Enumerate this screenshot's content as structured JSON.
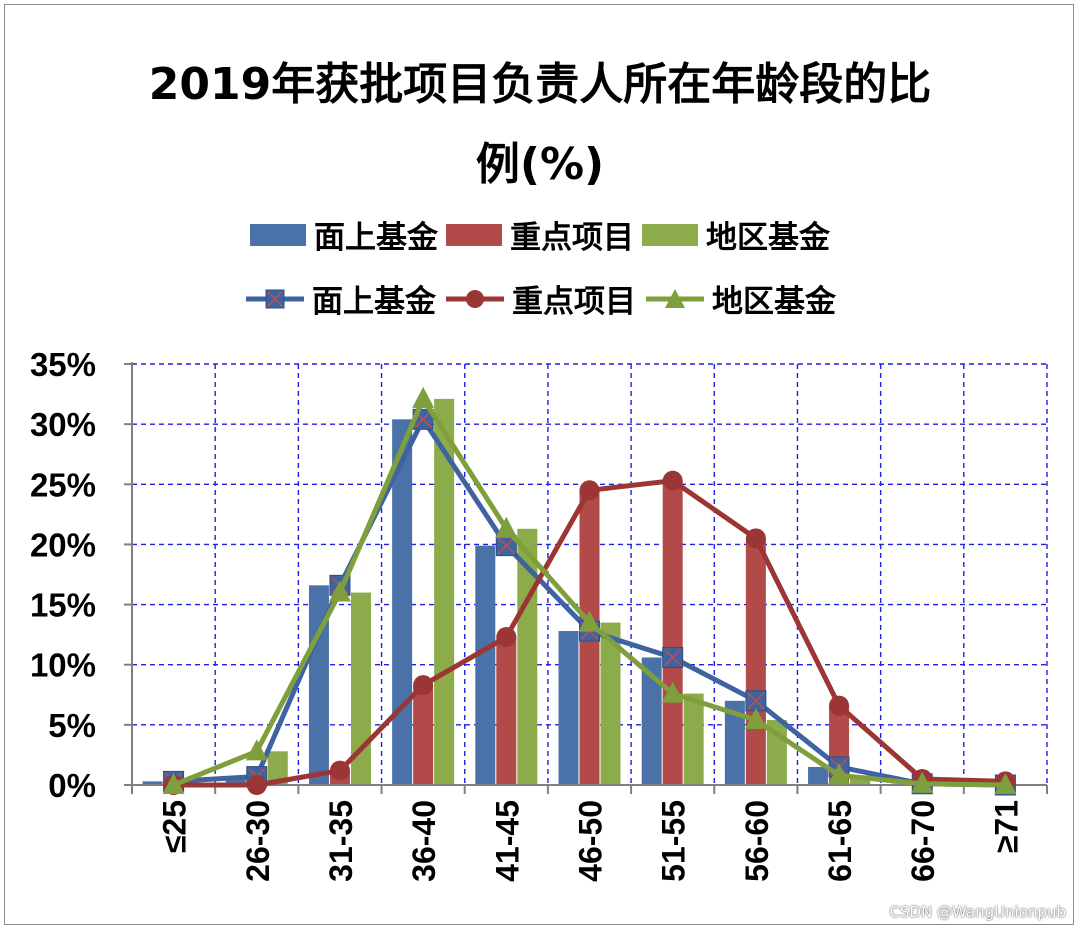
{
  "chart_data": {
    "type": "bar",
    "title_line1": "2019年获批项目负责人所在年龄段的比",
    "title_line2": "例(%)",
    "categories": [
      "≤25",
      "26-30",
      "31-35",
      "36-40",
      "41-45",
      "46-50",
      "51-55",
      "56-60",
      "61-65",
      "66-70",
      "≥71"
    ],
    "ylim": [
      0,
      35
    ],
    "yticks": [
      "0%",
      "5%",
      "10%",
      "15%",
      "20%",
      "25%",
      "30%",
      "35%"
    ],
    "ytick_values": [
      0,
      5,
      10,
      15,
      20,
      25,
      30,
      35
    ],
    "grid": true,
    "legend_position": "top",
    "bar_series": [
      {
        "name": "面上基金",
        "color": "#4a72a8",
        "values": [
          0.3,
          0.7,
          16.6,
          30.4,
          19.9,
          12.8,
          10.6,
          7.0,
          1.5,
          0.1,
          0.0
        ]
      },
      {
        "name": "重点项目",
        "color": "#b24a4a",
        "values": [
          0.0,
          0.0,
          1.2,
          8.3,
          12.3,
          24.5,
          25.3,
          20.5,
          6.6,
          0.5,
          0.3
        ]
      },
      {
        "name": "地区基金",
        "color": "#8cab4a",
        "values": [
          0.0,
          2.8,
          16.0,
          32.1,
          21.3,
          13.5,
          7.6,
          5.4,
          0.8,
          0.1,
          0.0
        ]
      }
    ],
    "line_series": [
      {
        "name": "面上基金",
        "color": "#3f63a0",
        "marker": "square-x",
        "values": [
          0.3,
          0.7,
          16.6,
          30.4,
          19.9,
          12.8,
          10.6,
          7.0,
          1.5,
          0.1,
          0.0
        ]
      },
      {
        "name": "重点项目",
        "color": "#9c3634",
        "marker": "circle",
        "values": [
          0.0,
          0.0,
          1.2,
          8.3,
          12.3,
          24.5,
          25.3,
          20.5,
          6.6,
          0.5,
          0.3
        ]
      },
      {
        "name": "地区基金",
        "color": "#7e9f3c",
        "marker": "triangle",
        "values": [
          0.0,
          2.8,
          16.0,
          32.1,
          21.3,
          13.5,
          7.6,
          5.4,
          0.8,
          0.1,
          0.0
        ]
      }
    ]
  },
  "watermark": "CSDN @WangUnionpub"
}
